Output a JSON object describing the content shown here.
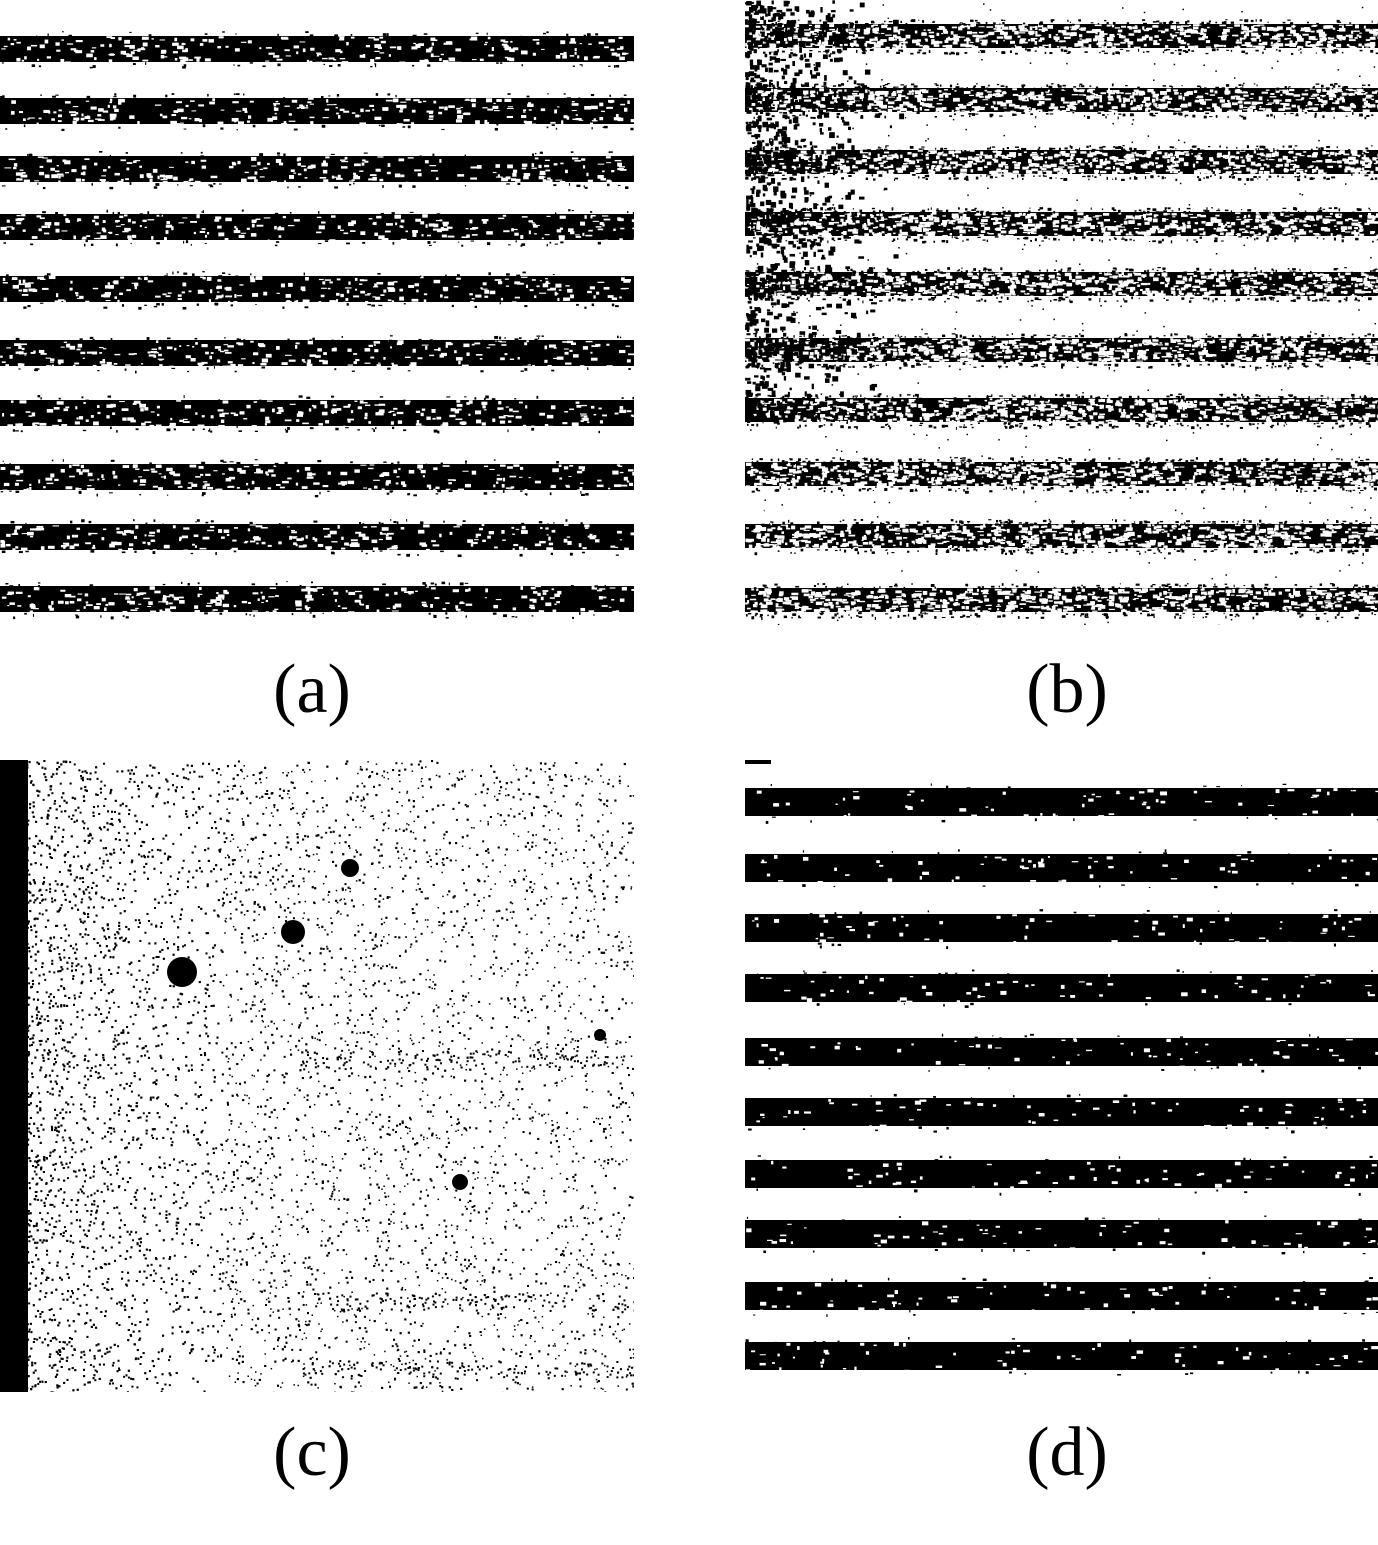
{
  "figure": {
    "panels": [
      {
        "id": "a",
        "caption": "(a)",
        "description_icon": "binarized-fringe-image",
        "stripes": 10,
        "noise": "moderate"
      },
      {
        "id": "b",
        "caption": "(b)",
        "description_icon": "binarized-fringe-image",
        "stripes": 10,
        "noise": "heavy"
      },
      {
        "id": "c",
        "caption": "(c)",
        "description_icon": "binarized-noise-image",
        "stripes": 0,
        "noise": "very-heavy"
      },
      {
        "id": "d",
        "caption": "(d)",
        "description_icon": "binarized-fringe-image",
        "stripes": 10,
        "noise": "low"
      }
    ],
    "colors": {
      "ink": "#000000",
      "paper": "#ffffff"
    }
  }
}
